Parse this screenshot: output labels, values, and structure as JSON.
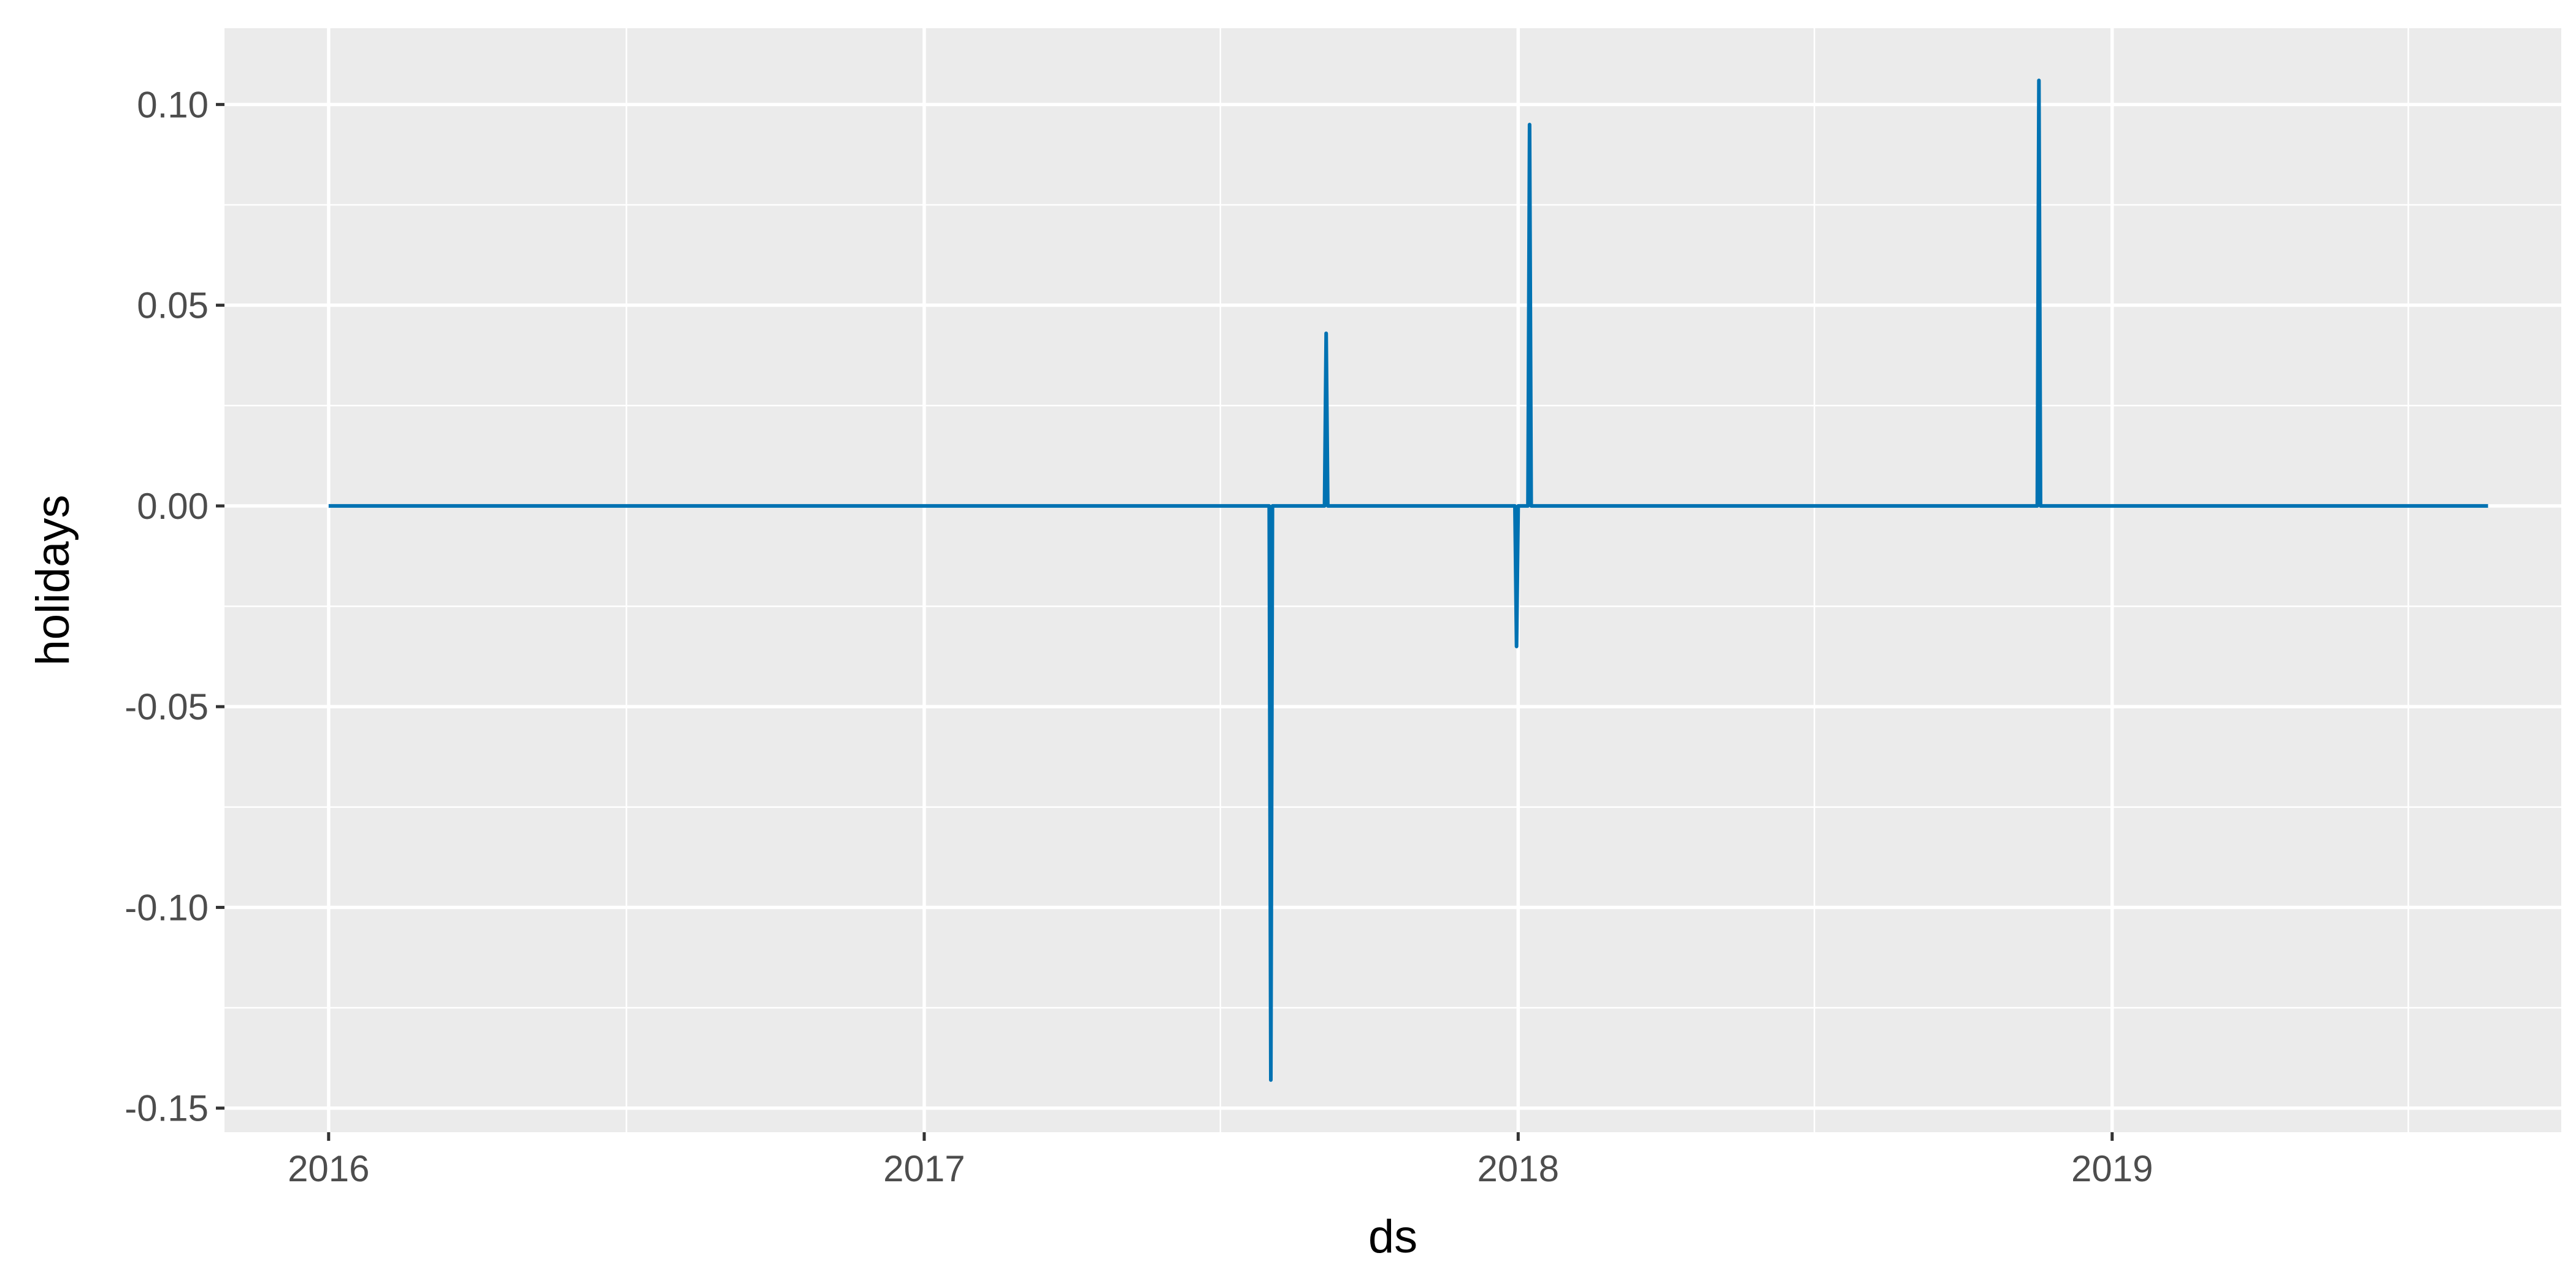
{
  "chart_data": {
    "type": "line",
    "title": "",
    "xlabel": "ds",
    "ylabel": "holidays",
    "x_type": "date",
    "xlim": [
      "2015-10-29",
      "2019-10-04"
    ],
    "ylim": [
      -0.156,
      0.119
    ],
    "x_ticks": [
      "2016",
      "2017",
      "2018",
      "2019"
    ],
    "y_ticks": [
      "-0.15",
      "-0.10",
      "-0.05",
      "0.00",
      "0.05",
      "0.10"
    ],
    "grid": true,
    "legend": "none",
    "colors": {
      "panel_background": "#EBEBEB",
      "grid": "#FFFFFF",
      "line": "#0072B2",
      "tick_text": "#4D4D4D",
      "tick_mark": "#333333"
    },
    "series": [
      {
        "points": [
          {
            "x": "2016-01-01",
            "y": 0
          },
          {
            "x": "2017-08-01",
            "y": 0
          },
          {
            "x": "2017-08-02",
            "y": -0.143
          },
          {
            "x": "2017-08-03",
            "y": 0
          },
          {
            "x": "2017-09-04",
            "y": 0
          },
          {
            "x": "2017-09-05",
            "y": 0.043
          },
          {
            "x": "2017-09-06",
            "y": 0
          },
          {
            "x": "2017-12-30",
            "y": 0
          },
          {
            "x": "2017-12-31",
            "y": -0.035
          },
          {
            "x": "2018-01-01",
            "y": 0
          },
          {
            "x": "2018-01-07",
            "y": 0
          },
          {
            "x": "2018-01-08",
            "y": 0.095
          },
          {
            "x": "2018-01-09",
            "y": 0
          },
          {
            "x": "2018-11-16",
            "y": 0
          },
          {
            "x": "2018-11-17",
            "y": 0.106
          },
          {
            "x": "2018-11-18",
            "y": 0
          },
          {
            "x": "2019-08-20",
            "y": 0
          }
        ]
      }
    ]
  }
}
